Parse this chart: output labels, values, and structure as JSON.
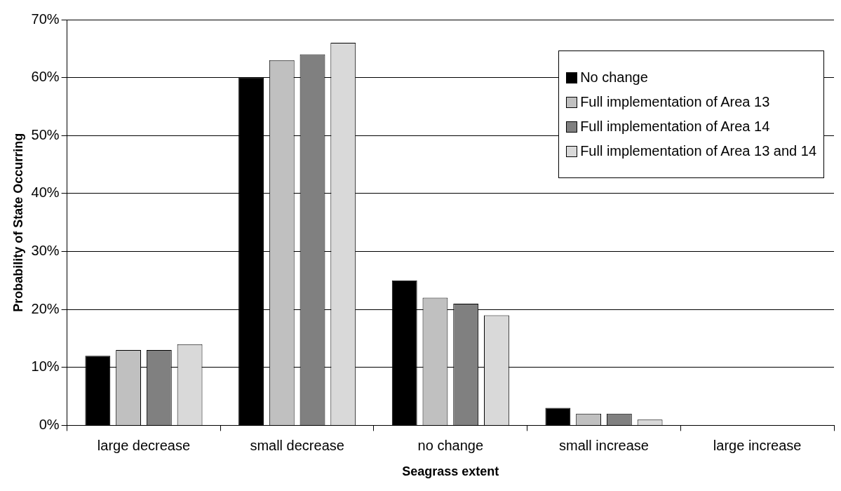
{
  "chart_data": {
    "type": "bar",
    "xlabel": "Seagrass extent",
    "ylabel": "Probability of State Occurring",
    "categories": [
      "large decrease",
      "small decrease",
      "no change",
      "small increase",
      "large increase"
    ],
    "series": [
      {
        "name": "No change",
        "color": "#000000",
        "values": [
          12,
          60,
          25,
          3,
          0
        ]
      },
      {
        "name": "Full implementation of Area 13",
        "color": "#c0c0c0",
        "values": [
          13,
          63,
          22,
          2,
          0
        ]
      },
      {
        "name": "Full implementation of Area 14",
        "color": "#808080",
        "values": [
          13,
          64,
          21,
          2,
          0
        ]
      },
      {
        "name": "Full implementation of Area 13 and 14",
        "color": "#d9d9d9",
        "values": [
          14,
          66,
          19,
          1,
          0
        ]
      }
    ],
    "ylim": [
      0,
      70
    ],
    "yticks": [
      {
        "value": 0,
        "label": "0%"
      },
      {
        "value": 10,
        "label": "10%"
      },
      {
        "value": 20,
        "label": "20%"
      },
      {
        "value": 30,
        "label": "30%"
      },
      {
        "value": 40,
        "label": "40%"
      },
      {
        "value": 50,
        "label": "50%"
      },
      {
        "value": 60,
        "label": "60%"
      },
      {
        "value": 70,
        "label": "70%"
      }
    ],
    "grid": "y",
    "legend": "top right"
  }
}
